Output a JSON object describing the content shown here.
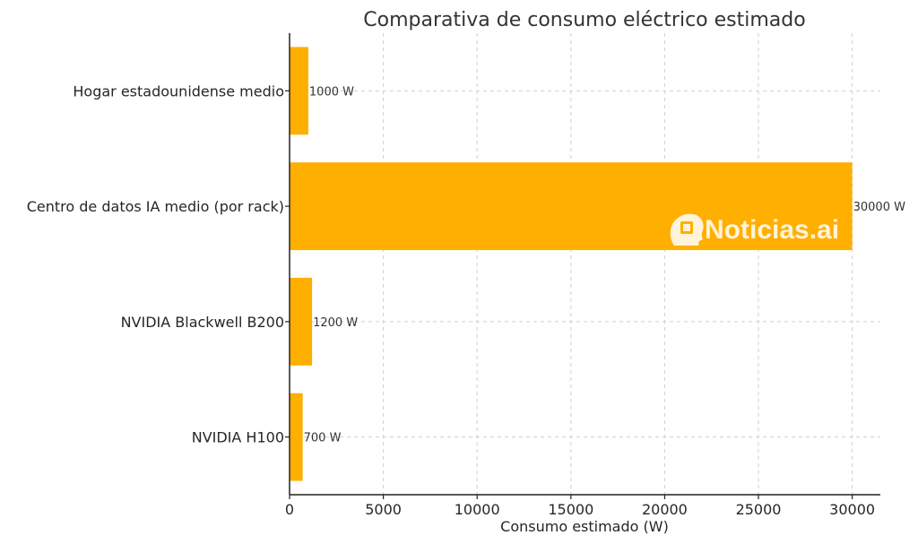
{
  "chart_data": {
    "type": "bar",
    "orientation": "horizontal",
    "title": "Comparativa de consumo eléctrico estimado",
    "xlabel": "Consumo estimado (W)",
    "ylabel": "",
    "categories": [
      "Hogar estadounidense medio",
      "Centro de datos IA medio (por rack)",
      "NVIDIA Blackwell B200",
      "NVIDIA H100"
    ],
    "values": [
      1000,
      30000,
      1200,
      700
    ],
    "data_labels": [
      "1000 W",
      "30000 W",
      "1200 W",
      "700 W"
    ],
    "xlim": [
      0,
      31500
    ],
    "xticks": [
      0,
      5000,
      10000,
      15000,
      20000,
      25000,
      30000
    ],
    "grid": true,
    "colors": {
      "bar": "#FFAF00"
    }
  },
  "watermark": {
    "text": "Noticias.ai",
    "icon": "brain-chip-icon"
  }
}
